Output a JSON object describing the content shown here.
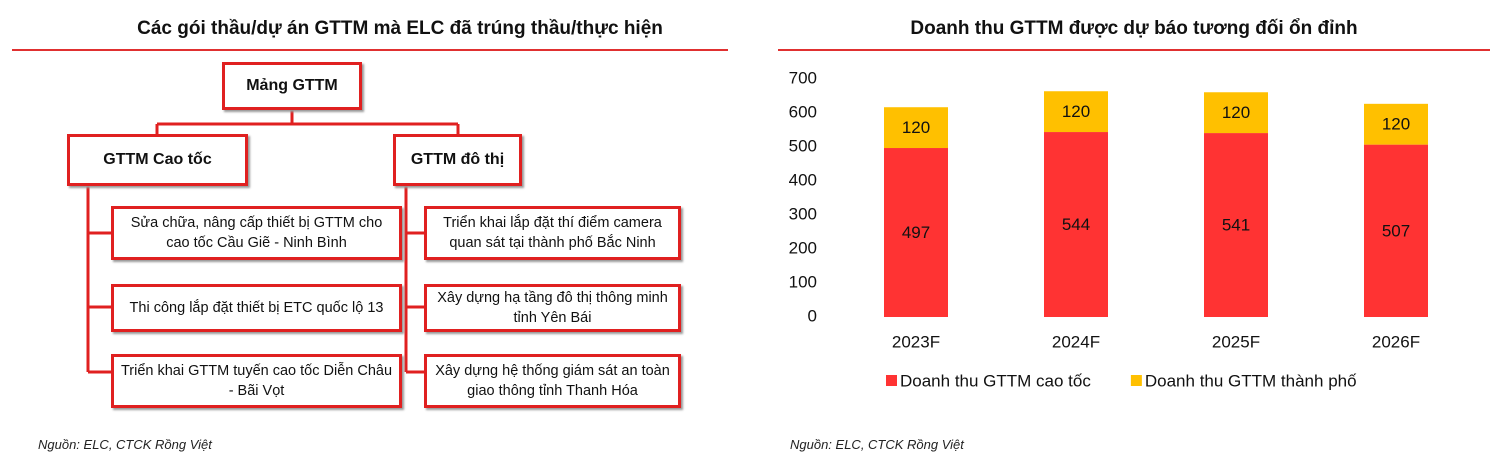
{
  "diagram": {
    "title": "Các gói thầu/dự án GTTM mà ELC đã trúng thầu/thực hiện",
    "root": "Mảng GTTM",
    "branches": [
      {
        "label": "GTTM Cao tốc",
        "items": [
          "Sửa chữa, nâng cấp thiết bị GTTM cho cao tốc Cầu Giẽ - Ninh Bình",
          "Thi công lắp đặt thiết bị ETC quốc lộ 13",
          "Triển khai GTTM tuyến cao tốc Diễn Châu - Bãi Vọt"
        ]
      },
      {
        "label": "GTTM đô thị",
        "items": [
          "Triển khai lắp đặt thí điểm camera quan sát tại thành phố Bắc Ninh",
          "Xây dựng hạ tầng đô thị thông minh tỉnh Yên Bái",
          "Xây dựng hệ thống giám sát an toàn giao thông tỉnh Thanh Hóa"
        ]
      }
    ],
    "source": "Nguồn: ELC, CTCK Rồng Việt"
  },
  "chart_data": {
    "type": "stacked_bar",
    "title": "Doanh thu GTTM được dự báo tương đối ổn đỉnh",
    "categories": [
      "2023F",
      "2024F",
      "2025F",
      "2026F"
    ],
    "series": [
      {
        "name": "Doanh thu GTTM cao tốc",
        "color": "#ff3333",
        "values": [
          497,
          544,
          541,
          507
        ]
      },
      {
        "name": "Doanh thu GTTM thành phố",
        "color": "#ffc000",
        "values": [
          120,
          120,
          120,
          120
        ]
      }
    ],
    "ylim": [
      0,
      700
    ],
    "yticks": [
      0,
      100,
      200,
      300,
      400,
      500,
      600,
      700
    ],
    "grid": false,
    "legend": "bottom",
    "source": "Nguồn: ELC, CTCK Rồng Việt"
  }
}
